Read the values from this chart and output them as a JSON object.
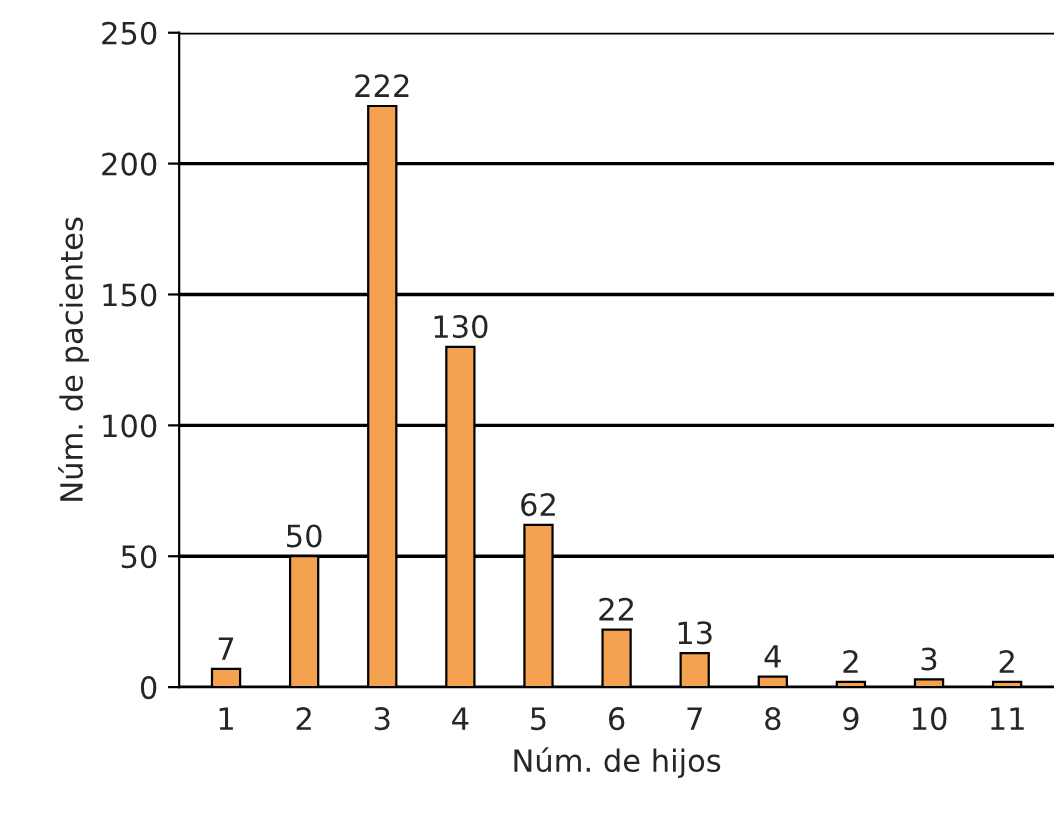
{
  "chart_data": {
    "type": "bar",
    "xlabel": "Núm. de hijos",
    "ylabel": "Núm. de pacientes",
    "categories": [
      "1",
      "2",
      "3",
      "4",
      "5",
      "6",
      "7",
      "8",
      "9",
      "10",
      "11"
    ],
    "values": [
      7,
      50,
      222,
      130,
      62,
      22,
      13,
      4,
      2,
      3,
      2
    ],
    "color": "#f4a24f",
    "ylim": [
      0,
      250
    ],
    "yticks": [
      0,
      50,
      100,
      150,
      200,
      250
    ],
    "grid": "y",
    "data_labels": true
  }
}
